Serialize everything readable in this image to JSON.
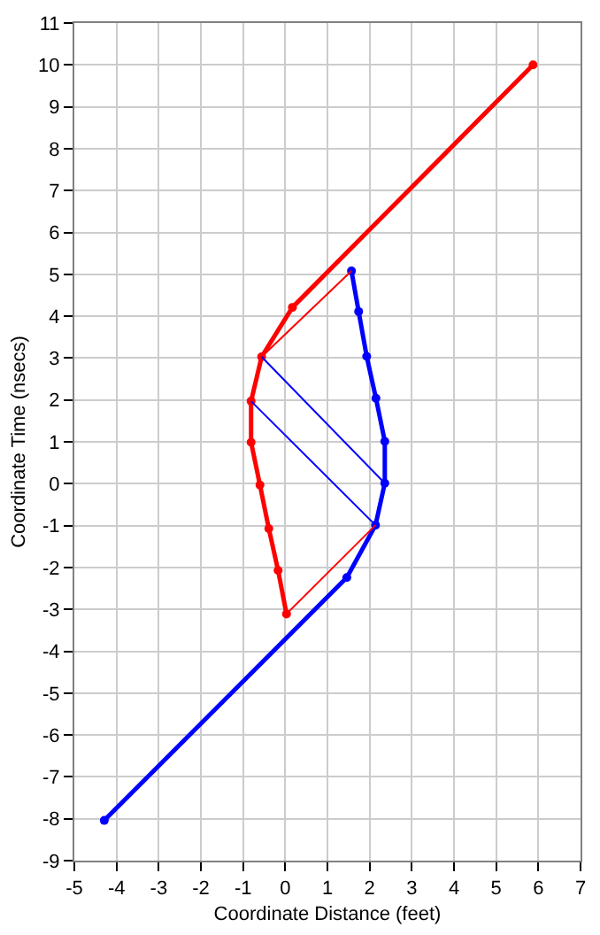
{
  "chart_data": {
    "type": "line",
    "xlabel": "Coordinate Distance (feet)",
    "ylabel": "Coordinate Time (nsecs)",
    "xlim": [
      -5,
      7
    ],
    "xticks": [
      -5,
      -4,
      -3,
      -2,
      -1,
      0,
      1,
      2,
      3,
      4,
      5,
      6,
      7
    ],
    "ylim": [
      -9,
      11
    ],
    "yticks": [
      -9,
      -8,
      -7,
      -6,
      -5,
      -4,
      -3,
      -2,
      -1,
      0,
      1,
      2,
      3,
      4,
      5,
      6,
      7,
      8,
      9,
      10,
      11
    ],
    "grid": true,
    "series": [
      {
        "color": "#ff0000",
        "marker": "circle",
        "x": [
          5.875,
          0.17,
          -0.56,
          -0.81,
          -0.81,
          -0.6,
          -0.39,
          -0.17,
          0.03
        ],
        "values": [
          10,
          4.21,
          3.03,
          1.97,
          0.99,
          -0.03,
          -1.07,
          -2.07,
          -3.11
        ]
      },
      {
        "color": "#0000ff",
        "marker": "circle",
        "x": [
          1.57,
          1.74,
          1.93,
          2.15,
          2.36,
          2.36,
          2.14,
          1.46,
          -4.29
        ],
        "values": [
          5.08,
          4.11,
          3.04,
          2.04,
          1.01,
          0.01,
          -0.99,
          -2.24,
          -8.04
        ]
      },
      {
        "color": "#ff0000",
        "marker": "none",
        "x": [
          -0.56,
          1.57
        ],
        "values": [
          3.03,
          5.08
        ]
      },
      {
        "color": "#0000ff",
        "marker": "none",
        "x": [
          -0.56,
          2.36
        ],
        "values": [
          3.03,
          0.01
        ]
      },
      {
        "color": "#0000ff",
        "marker": "none",
        "x": [
          -0.81,
          2.14
        ],
        "values": [
          1.97,
          -0.99
        ]
      },
      {
        "color": "#ff0000",
        "marker": "none",
        "x": [
          0.03,
          2.14
        ],
        "values": [
          -3.11,
          -0.99
        ]
      }
    ]
  }
}
